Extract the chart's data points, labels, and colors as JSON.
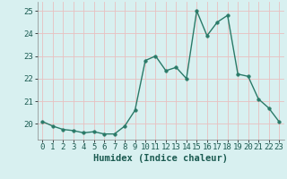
{
  "x": [
    0,
    1,
    2,
    3,
    4,
    5,
    6,
    7,
    8,
    9,
    10,
    11,
    12,
    13,
    14,
    15,
    16,
    17,
    18,
    19,
    20,
    21,
    22,
    23
  ],
  "y": [
    20.1,
    19.9,
    19.75,
    19.7,
    19.6,
    19.65,
    19.55,
    19.55,
    19.9,
    20.6,
    22.8,
    23.0,
    22.35,
    22.5,
    22.0,
    25.0,
    23.9,
    24.5,
    24.8,
    22.2,
    22.1,
    21.1,
    20.7,
    20.1
  ],
  "line_color": "#2a7a68",
  "marker_color": "#2a7a68",
  "bg_color": "#d8f0f0",
  "grid_color": "#e8c0c0",
  "xlabel": "Humidex (Indice chaleur)",
  "ylim": [
    19.3,
    25.4
  ],
  "xlim": [
    -0.5,
    23.5
  ],
  "yticks": [
    20,
    21,
    22,
    23,
    24,
    25
  ],
  "xticks": [
    0,
    1,
    2,
    3,
    4,
    5,
    6,
    7,
    8,
    9,
    10,
    11,
    12,
    13,
    14,
    15,
    16,
    17,
    18,
    19,
    20,
    21,
    22,
    23
  ],
  "xlabel_fontsize": 7.5,
  "tick_fontsize": 6.5,
  "line_width": 1.0,
  "marker_size": 2.5
}
